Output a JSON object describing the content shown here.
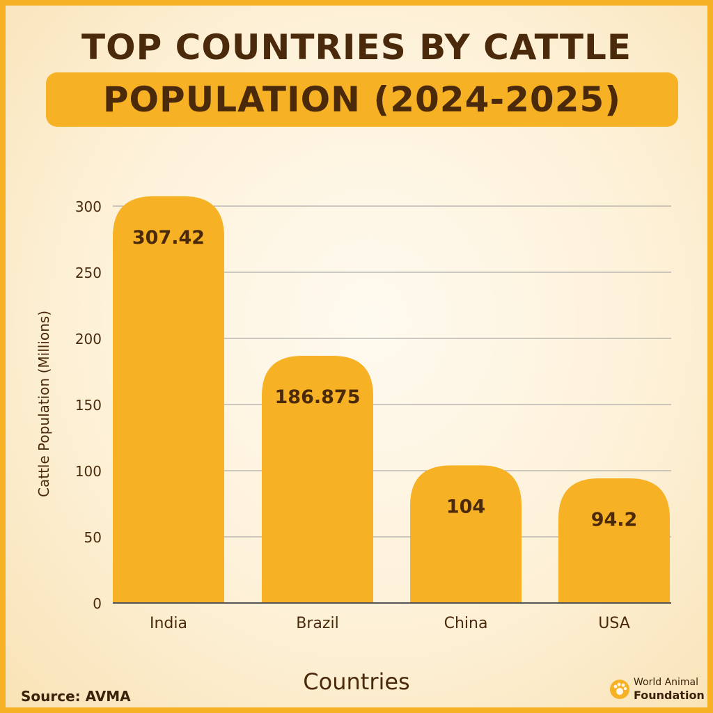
{
  "header": {
    "title_line1": "TOP COUNTRIES BY CATTLE",
    "title_line2": "POPULATION (2024-2025)"
  },
  "chart_data": {
    "type": "bar",
    "categories": [
      "India",
      "Brazil",
      "China",
      "USA"
    ],
    "values": [
      307.42,
      186.875,
      104,
      94.2
    ],
    "data_labels": [
      "307.42",
      "186.875",
      "104",
      "94.2"
    ],
    "xlabel": "Countries",
    "ylabel": "Cattle Population (Millions)",
    "ylim": [
      0,
      300
    ],
    "yticks": [
      0,
      50,
      100,
      150,
      200,
      250,
      300
    ],
    "grid": true,
    "legend": "none"
  },
  "footer": {
    "source": "Source: AVMA",
    "logo_line1": "World Animal",
    "logo_line2": "Foundation"
  },
  "colors": {
    "bar": "#f7b124",
    "text": "#4a2a0a",
    "grid": "#9a9a9a",
    "axis": "#555555"
  }
}
